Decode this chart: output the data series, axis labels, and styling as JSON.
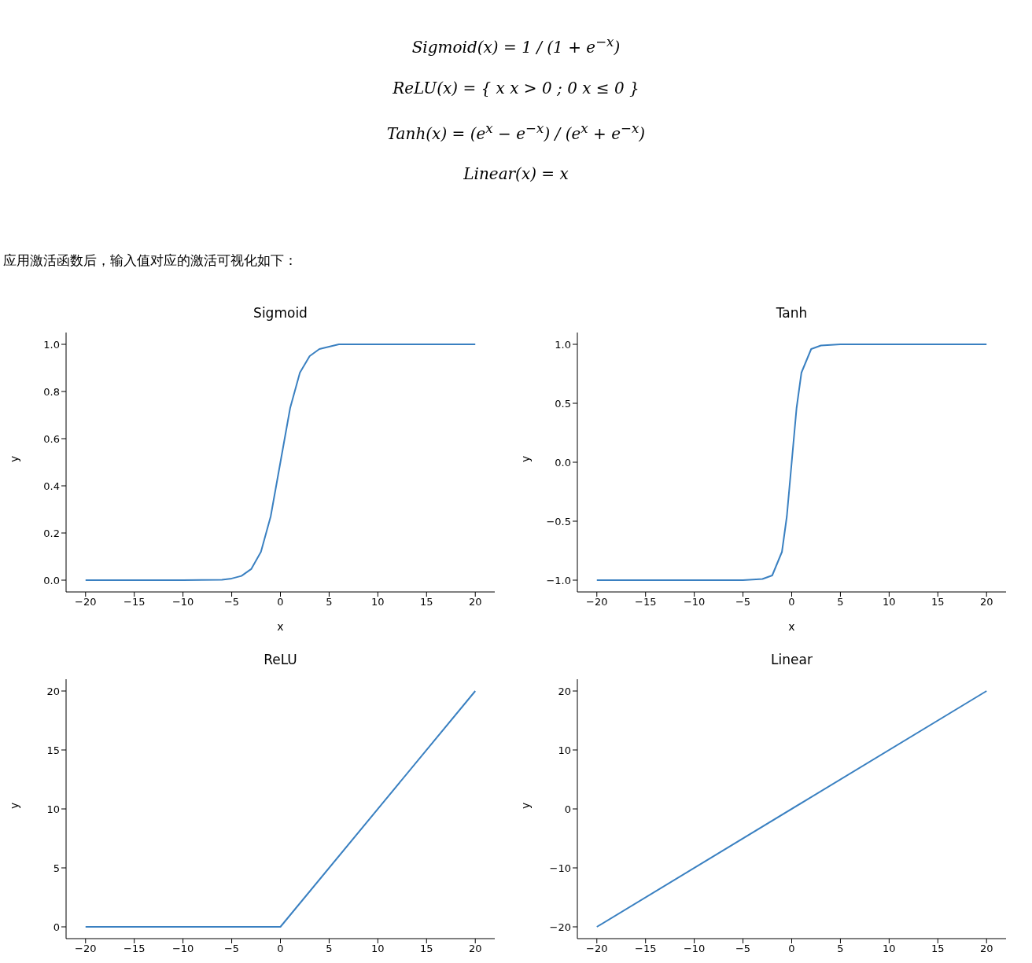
{
  "chart_data": [
    {
      "type": "line",
      "title": "Sigmoid",
      "xlabel": "x",
      "ylabel": "y",
      "annotations": [
        "Sigmoid(x) = 1 / (1 + e$^{−x}$)",
        "ReLU(x) = { x  x > 0 ; 0  x ≤ 0 }",
        "Tanh(x) = (e$^{x}$ − e$^{−x}$) / (e$^{x}$ + e$^{−x}$)",
        "Linear(x) = x",
        "应用激活函数后，输入值对应的激活可视化如下："
      ],
      "x": [
        -20,
        -10,
        -6,
        -5,
        -4,
        -3,
        -2,
        -1,
        0,
        1,
        2,
        3,
        4,
        5,
        6,
        10,
        20
      ],
      "series": [
        {
          "color": "#3a80c1",
          "values": [
            0,
            0,
            0.002,
            0.007,
            0.018,
            0.047,
            0.12,
            0.27,
            0.5,
            0.73,
            0.88,
            0.95,
            0.98,
            0.99,
            1,
            1,
            1
          ]
        }
      ],
      "xlim": [
        -22,
        22
      ],
      "ylim": [
        -0.05,
        1.05
      ],
      "xticks": [
        {
          "value": -20,
          "label": "−20"
        },
        {
          "value": -15,
          "label": "−15"
        },
        {
          "value": -10,
          "label": "−10"
        },
        {
          "value": -5,
          "label": "−5"
        },
        0,
        5,
        10,
        15,
        20
      ],
      "yticks": [
        {
          "value": 0,
          "label": "0.0"
        },
        {
          "value": 0.2,
          "label": "0.2"
        },
        {
          "value": 0.4,
          "label": "0.4"
        },
        {
          "value": 0.6,
          "label": "0.6"
        },
        {
          "value": 0.8,
          "label": "0.8"
        },
        {
          "value": 1,
          "label": "1.0"
        }
      ]
    },
    {
      "type": "line",
      "title": "Tanh",
      "xlabel": "x",
      "ylabel": "y",
      "x": [
        -20,
        -5,
        -3,
        -2,
        -1,
        -0.5,
        0,
        0.5,
        1,
        2,
        3,
        5,
        20
      ],
      "series": [
        {
          "color": "#3a80c1",
          "values": [
            -1,
            -1,
            -0.99,
            -0.96,
            -0.76,
            -0.46,
            0,
            0.46,
            0.76,
            0.96,
            0.99,
            1,
            1
          ]
        }
      ],
      "xlim": [
        -22,
        22
      ],
      "ylim": [
        -1.1,
        1.1
      ],
      "xticks": [
        {
          "value": -20,
          "label": "−20"
        },
        {
          "value": -15,
          "label": "−15"
        },
        {
          "value": -10,
          "label": "−10"
        },
        {
          "value": -5,
          "label": "−5"
        },
        0,
        5,
        10,
        15,
        20
      ],
      "yticks": [
        {
          "value": -1,
          "label": "−1.0"
        },
        {
          "value": -0.5,
          "label": "−0.5"
        },
        {
          "value": 0,
          "label": "0.0"
        },
        {
          "value": 0.5,
          "label": "0.5"
        },
        {
          "value": 1,
          "label": "1.0"
        }
      ]
    },
    {
      "type": "line",
      "title": "ReLU",
      "ylabel": "y",
      "x": [
        -20,
        0,
        20
      ],
      "series": [
        {
          "color": "#3a80c1",
          "values": [
            0,
            0,
            20
          ]
        }
      ],
      "xlim": [
        -22,
        22
      ],
      "ylim": [
        -1,
        21
      ],
      "xticks": [
        {
          "value": -20,
          "label": "−20"
        },
        {
          "value": -15,
          "label": "−15"
        },
        {
          "value": -10,
          "label": "−10"
        },
        {
          "value": -5,
          "label": "−5"
        },
        0,
        5,
        10,
        15,
        20
      ],
      "yticks": [
        0,
        5,
        10,
        15,
        20
      ]
    },
    {
      "type": "line",
      "title": "Linear",
      "ylabel": "y",
      "x": [
        -20,
        20
      ],
      "series": [
        {
          "color": "#3a80c1",
          "values": [
            -20,
            20
          ]
        }
      ],
      "xlim": [
        -22,
        22
      ],
      "ylim": [
        -22,
        22
      ],
      "xticks": [
        {
          "value": -20,
          "label": "−20"
        },
        {
          "value": -15,
          "label": "−15"
        },
        {
          "value": -10,
          "label": "−10"
        },
        {
          "value": -5,
          "label": "−5"
        },
        0,
        5,
        10,
        15,
        20
      ],
      "yticks": [
        {
          "value": -20,
          "label": "−20"
        },
        {
          "value": -10,
          "label": "−10"
        },
        0,
        10,
        20
      ]
    }
  ]
}
